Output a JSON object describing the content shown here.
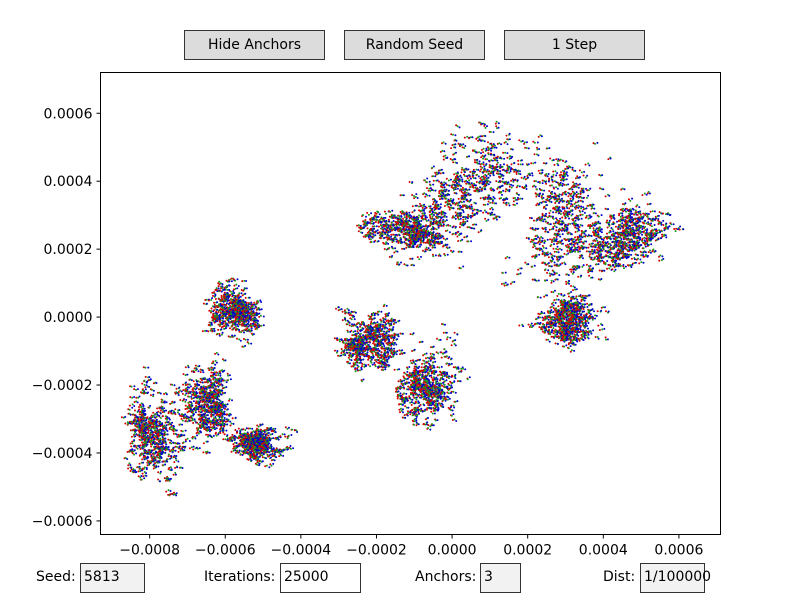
{
  "buttons": {
    "hide_anchors": "Hide Anchors",
    "random_seed": "Random Seed",
    "one_step": "1 Step"
  },
  "controls": {
    "seed_label": "Seed:",
    "seed_value": "5813",
    "iterations_label": "Iterations:",
    "iterations_value": "25000",
    "anchors_label": "Anchors:",
    "anchors_value": "3",
    "dist_label": "Dist:",
    "dist_value": "1/100000"
  },
  "colors": {
    "button_bg": "#dcdcdc",
    "field_bg_active": "#ffffff",
    "field_bg_inactive": "#f2f2f2",
    "series": [
      "#d40000",
      "#1a9a1a",
      "#0000cc"
    ]
  },
  "chart_data": {
    "type": "scatter",
    "title": "",
    "xlabel": "",
    "ylabel": "",
    "xlim": [
      -0.00093,
      0.00071
    ],
    "ylim": [
      -0.00064,
      0.00072
    ],
    "xticks": [
      -0.0008,
      -0.0006,
      -0.0004,
      -0.0002,
      0.0,
      0.0002,
      0.0004,
      0.0006
    ],
    "xtick_labels": [
      "−0.0008",
      "−0.0006",
      "−0.0004",
      "−0.0002",
      "0.0000",
      "0.0002",
      "0.0004",
      "0.0006"
    ],
    "yticks": [
      -0.0006,
      -0.0004,
      -0.0002,
      0.0,
      0.0002,
      0.0004,
      0.0006
    ],
    "ytick_labels": [
      "−0.0006",
      "−0.0004",
      "−0.0002",
      "0.0000",
      "0.0002",
      "0.0004",
      "0.0006"
    ],
    "grid": false,
    "seed": 5813,
    "iterations": 25000,
    "clusters": [
      {
        "x": -0.00078,
        "y": -0.00035,
        "rx": 8e-05,
        "ry": 0.00013
      },
      {
        "x": -0.00064,
        "y": -0.00025,
        "rx": 7e-05,
        "ry": 0.00012
      },
      {
        "x": -0.00057,
        "y": 1e-05,
        "rx": 8e-05,
        "ry": 8e-05
      },
      {
        "x": -0.00052,
        "y": -0.00038,
        "rx": 6e-05,
        "ry": 5e-05
      },
      {
        "x": -0.00022,
        "y": -8e-05,
        "rx": 8e-05,
        "ry": 8e-05
      },
      {
        "x": -8e-05,
        "y": -0.00019,
        "rx": 9e-05,
        "ry": 0.00011
      },
      {
        "x": -0.00012,
        "y": 0.00027,
        "rx": 0.00011,
        "ry": 9e-05
      },
      {
        "x": 8e-05,
        "y": 0.00038,
        "rx": 0.00016,
        "ry": 0.00018
      },
      {
        "x": 0.00029,
        "y": 0.00027,
        "rx": 0.00013,
        "ry": 0.0002
      },
      {
        "x": 0.00046,
        "y": 0.00022,
        "rx": 0.00014,
        "ry": 0.00012
      },
      {
        "x": 0.00031,
        "y": -2e-05,
        "rx": 9e-05,
        "ry": 8e-05
      }
    ]
  }
}
